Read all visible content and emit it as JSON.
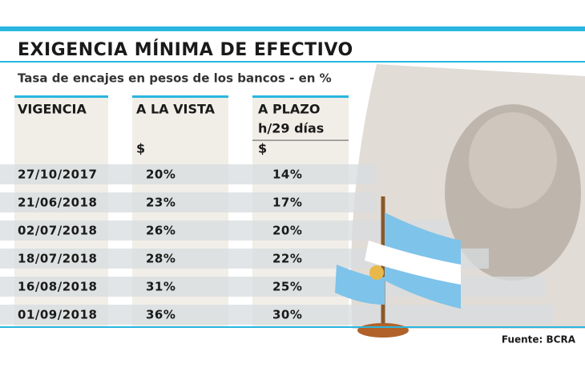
{
  "header": {
    "title": "EXIGENCIA MÍNIMA DE EFECTIVO",
    "subtitle": "Tasa de encajes en pesos de los bancos - en %"
  },
  "table": {
    "columns": [
      "VIGENCIA",
      "A LA VISTA",
      "A PLAZO"
    ],
    "column_notes": [
      "h/29 días"
    ],
    "units": [
      "$",
      "$"
    ],
    "rows": [
      [
        "27/10/2017",
        "20%",
        "14%"
      ],
      [
        "21/06/2018",
        "23%",
        "17%"
      ],
      [
        "02/07/2018",
        "26%",
        "20%"
      ],
      [
        "18/07/2018",
        "28%",
        "22%"
      ],
      [
        "16/08/2018",
        "31%",
        "25%"
      ],
      [
        "01/09/2018",
        "36%",
        "30%"
      ]
    ]
  },
  "footer": {
    "source": "Fuente: BCRA"
  }
}
